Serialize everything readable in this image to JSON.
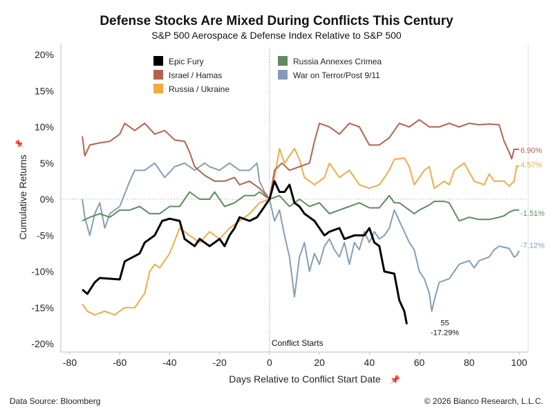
{
  "chart_data": {
    "type": "line",
    "title": "Defense Stocks Are Mixed During Conflicts This Century",
    "subtitle": "S&P 500 Aerospace & Defense Index Relative to S&P 500",
    "xlabel": "Days Relative to Conflict Start Date",
    "ylabel": "Cumulative Returns",
    "xlim": [
      -80,
      100
    ],
    "ylim": [
      -20,
      20
    ],
    "xticks": [
      -80,
      -60,
      -40,
      -20,
      0,
      20,
      40,
      60,
      80,
      100
    ],
    "yticks": [
      20,
      15,
      10,
      5,
      0,
      -5,
      -10,
      -15,
      -20
    ],
    "ytick_labels": [
      "20%",
      "15%",
      "10%",
      "5%",
      "0%",
      "-5%",
      "-10%",
      "-15%",
      "-20%"
    ],
    "legend": "top",
    "annotation": "Conflict Starts",
    "series": [
      {
        "name": "Epic Fury",
        "color": "#000000",
        "end_label": "-17.29%",
        "end_day_label": "55",
        "x": [
          -75,
          -73,
          -70,
          -68,
          -60,
          -58,
          -52,
          -50,
          -46,
          -43,
          -40,
          -36,
          -34,
          -30,
          -28,
          -24,
          -20,
          -18,
          -16,
          -14,
          -12,
          -8,
          -5,
          -3,
          -1,
          0,
          2,
          4,
          6,
          8,
          10,
          12,
          14,
          18,
          22,
          24,
          28,
          30,
          34,
          38,
          40,
          42,
          44,
          46,
          50,
          52,
          54,
          55
        ],
        "y": [
          -12.5,
          -13.1,
          -11.5,
          -10.9,
          -11.1,
          -8.6,
          -7.5,
          -6,
          -5,
          -3,
          -2.7,
          -3,
          -5.5,
          -6.5,
          -5.5,
          -6.5,
          -5.5,
          -6.5,
          -5,
          -4,
          -2.5,
          -3,
          -2.5,
          -1.5,
          -0.5,
          0,
          2.5,
          1,
          1,
          2,
          -0.5,
          -1,
          -2,
          -3,
          -5,
          -4.5,
          -4,
          -5.5,
          -5,
          -5,
          -4,
          -6,
          -6.5,
          -10,
          -10.3,
          -14,
          -15.5,
          -17.29
        ]
      },
      {
        "name": "Israel / Hamas",
        "color": "#b5614f",
        "end_label": "6.90%",
        "x": [
          -75,
          -74,
          -72,
          -68,
          -64,
          -60,
          -58,
          -54,
          -50,
          -46,
          -42,
          -38,
          -34,
          -32,
          -30,
          -26,
          -22,
          -18,
          -14,
          -12,
          -8,
          -4,
          -2,
          0,
          2,
          5,
          8,
          12,
          16,
          18,
          20,
          24,
          28,
          32,
          36,
          40,
          44,
          48,
          52,
          56,
          60,
          64,
          68,
          72,
          76,
          80,
          84,
          88,
          92,
          94,
          96,
          97,
          98,
          100
        ],
        "y": [
          8.7,
          6,
          7.5,
          7.8,
          8,
          9,
          10.5,
          9.5,
          10.5,
          9,
          9.5,
          8.2,
          8,
          6.5,
          4.5,
          3.3,
          2.5,
          2.5,
          3,
          2,
          2.5,
          1.5,
          0.8,
          0,
          4,
          5,
          4,
          4.5,
          5,
          8,
          10.5,
          10,
          9,
          10.5,
          10,
          7.5,
          7.5,
          8.5,
          10.5,
          10,
          11,
          10,
          10,
          10.5,
          10,
          10.5,
          10.3,
          10.4,
          10.3,
          8,
          6.5,
          5.6,
          6.9,
          6.9
        ]
      },
      {
        "name": "Russia / Ukraine",
        "color": "#f2aa45",
        "end_label": "4.57%",
        "x": [
          -75,
          -73,
          -70,
          -66,
          -62,
          -58,
          -54,
          -50,
          -48,
          -46,
          -44,
          -40,
          -36,
          -32,
          -28,
          -24,
          -20,
          -16,
          -12,
          -8,
          -4,
          0,
          2,
          4,
          6,
          10,
          12,
          14,
          18,
          22,
          24,
          28,
          32,
          36,
          40,
          44,
          48,
          50,
          54,
          56,
          58,
          62,
          64,
          66,
          70,
          72,
          74,
          78,
          82,
          86,
          88,
          90,
          94,
          96,
          98,
          99,
          100
        ],
        "y": [
          -14.5,
          -15.5,
          -16,
          -15.5,
          -16,
          -15,
          -15,
          -13,
          -10,
          -9,
          -9.5,
          -7.5,
          -4,
          -5,
          -6,
          -4.5,
          -5.5,
          -4,
          -3,
          -2,
          -0.5,
          0,
          3,
          7,
          5,
          7,
          5.5,
          3,
          2,
          3,
          5,
          3,
          4,
          2,
          1.5,
          2,
          4,
          5.5,
          5.7,
          4.5,
          2,
          4,
          4.5,
          1.5,
          2.5,
          2,
          4,
          5,
          2.5,
          2,
          3.5,
          2.5,
          2.5,
          1.8,
          2.5,
          4.6,
          4.57
        ]
      },
      {
        "name": "Russia Annexes Crimea",
        "color": "#5e8a5e",
        "end_label": "-1.51%",
        "x": [
          -75,
          -72,
          -68,
          -64,
          -60,
          -56,
          -52,
          -48,
          -44,
          -40,
          -36,
          -32,
          -28,
          -24,
          -22,
          -18,
          -14,
          -10,
          -6,
          -4,
          -2,
          0,
          4,
          8,
          12,
          16,
          20,
          24,
          28,
          32,
          36,
          40,
          44,
          48,
          50,
          52,
          56,
          58,
          60,
          64,
          66,
          70,
          72,
          76,
          80,
          84,
          88,
          92,
          94,
          96,
          98,
          100
        ],
        "y": [
          -3,
          -2.5,
          -2,
          -2.5,
          -1.5,
          -1.5,
          -1,
          -2,
          -2,
          -1,
          -1,
          1,
          0,
          0,
          1,
          -1,
          -0.5,
          0.5,
          0.5,
          1,
          0.5,
          0,
          0.5,
          -1,
          0,
          -1,
          -0.5,
          -2,
          -1.5,
          -1,
          -0.5,
          -1.2,
          -1.2,
          0.5,
          -0.5,
          -0.5,
          -1.5,
          -2,
          -1.5,
          -0.8,
          -0.3,
          -0.3,
          -0.5,
          -3,
          -2.5,
          -2.8,
          -2.8,
          -2.5,
          -2.3,
          -1.8,
          -1.5,
          -1.51
        ]
      },
      {
        "name": "War on Terror/Post 9/11",
        "color": "#849db4",
        "end_label": "-7.12%",
        "x": [
          -75,
          -74,
          -72,
          -70,
          -68,
          -66,
          -64,
          -60,
          -56,
          -54,
          -50,
          -46,
          -42,
          -38,
          -34,
          -30,
          -26,
          -24,
          -20,
          -16,
          -12,
          -8,
          -5,
          -4,
          -2,
          0,
          2,
          4,
          6,
          8,
          10,
          12,
          14,
          16,
          18,
          20,
          22,
          24,
          26,
          28,
          30,
          32,
          34,
          36,
          38,
          40,
          42,
          44,
          46,
          48,
          50,
          52,
          54,
          56,
          58,
          60,
          62,
          64,
          65,
          66,
          68,
          72,
          74,
          76,
          80,
          82,
          84,
          88,
          90,
          92,
          96,
          98,
          99,
          100
        ],
        "y": [
          0,
          -2.5,
          -5,
          -2,
          -0.5,
          -4,
          -2,
          -1,
          2.5,
          4,
          4,
          5,
          3,
          4.5,
          5,
          4,
          5,
          4.5,
          4,
          5,
          4,
          4,
          5,
          2.5,
          1,
          0,
          -3,
          -1.5,
          -5,
          -8,
          -13.5,
          -8,
          -6,
          -10,
          -7.5,
          -9,
          -6.5,
          -5.5,
          -7,
          -8,
          -6,
          -9,
          -6,
          -7,
          -4.5,
          -6,
          -4.5,
          -5.5,
          -5,
          -4,
          -1.5,
          -3,
          -4.5,
          -6,
          -7,
          -10,
          -11,
          -13,
          -15.5,
          -14,
          -11.5,
          -11,
          -10,
          -9,
          -8.5,
          -9.5,
          -8.5,
          -8,
          -7,
          -6.5,
          -6.8,
          -8,
          -7.8,
          -7.12
        ]
      }
    ]
  },
  "footer": {
    "source": "Data Source: Bloomberg",
    "copyright": "© 2026 Bianco Research, L.L.C."
  },
  "icons": {
    "axis_label_icon": "pin-icon"
  }
}
